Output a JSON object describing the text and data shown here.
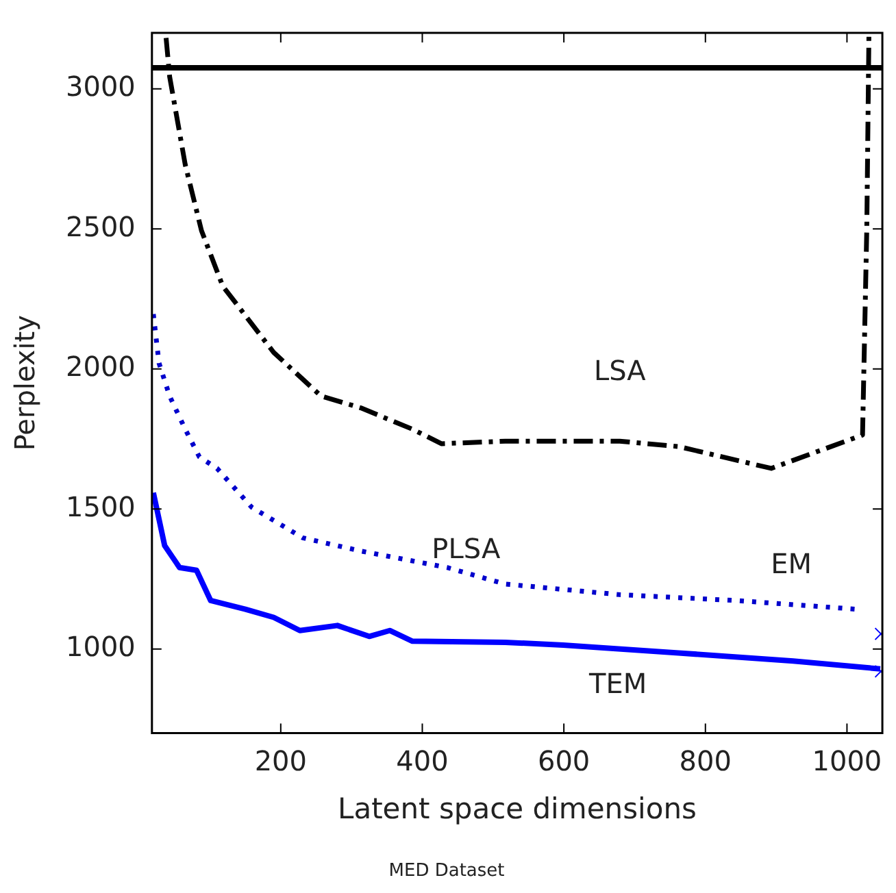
{
  "chart_data": {
    "type": "line",
    "title": "MED Dataset",
    "xlabel": "Latent space dimensions",
    "ylabel": "Perplexity",
    "xlim": [
      18,
      1050
    ],
    "xticks": [
      200,
      400,
      600,
      800,
      1000
    ],
    "ylim": [
      700,
      3200
    ],
    "yticks": [
      1000,
      1500,
      2000,
      2500,
      3000
    ],
    "grid": false,
    "legend": false,
    "marker": "none",
    "series": [
      {
        "name": "LSA",
        "color": "#000000",
        "line_style": "dashed",
        "x": [
          38,
          43,
          65,
          88,
          118,
          190,
          257,
          313,
          386,
          427,
          517,
          679,
          762,
          893,
          1022,
          1028,
          1031
        ],
        "values": [
          3182,
          3044,
          2730,
          2494,
          2296,
          2059,
          1903,
          1861,
          1785,
          1733,
          1742,
          1742,
          1723,
          1645,
          1764,
          2500,
          3190
        ]
      },
      {
        "name": "EM",
        "color": "#0000cc",
        "line_style": "dotted",
        "x": [
          20,
          28,
          43,
          65,
          85,
          110,
          159,
          231,
          313,
          435,
          517,
          679,
          844,
          1014
        ],
        "values": [
          2196,
          2021,
          1903,
          1785,
          1686,
          1645,
          1506,
          1397,
          1350,
          1291,
          1232,
          1194,
          1173,
          1142
        ]
      },
      {
        "name": "TEM",
        "color": "#0000ff",
        "line_style": "solid",
        "x": [
          20,
          36,
          57,
          81,
          101,
          150,
          190,
          227,
          280,
          325,
          354,
          386,
          517,
          599,
          762,
          924,
          1047
        ],
        "values": [
          1558,
          1369,
          1291,
          1281,
          1173,
          1142,
          1113,
          1066,
          1084,
          1045,
          1066,
          1028,
          1024,
          1014,
          986,
          957,
          929
        ]
      },
      {
        "type": "scatter",
        "color": "#0000ff",
        "marker": "cross",
        "x": [
          1048,
          1048
        ],
        "values": [
          1054,
          920
        ]
      }
    ],
    "ref_lines": [
      {
        "axis": "y",
        "value": 3075,
        "color": "#000000",
        "line_style": "solid"
      }
    ],
    "annotations": [
      "PLSA"
    ]
  }
}
